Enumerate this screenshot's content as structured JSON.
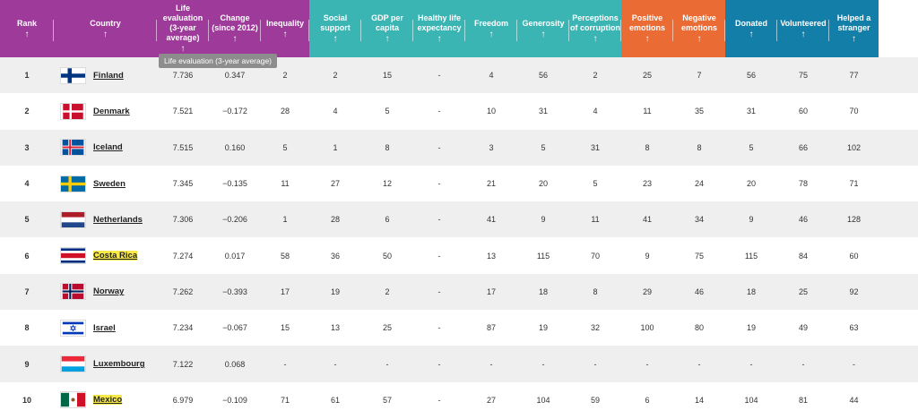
{
  "headers": [
    {
      "key": "rank",
      "label": "Rank",
      "group": "purple",
      "arrow": "↑"
    },
    {
      "key": "country",
      "label": "Country",
      "group": "purple",
      "arrow": "↑"
    },
    {
      "key": "life",
      "label": "Life\nevaluation\n(3-year\naverage)",
      "group": "purple",
      "arrow": "↑"
    },
    {
      "key": "change",
      "label": "Change\n(since 2012)",
      "group": "purple",
      "arrow": "↑"
    },
    {
      "key": "inequality",
      "label": "Inequality",
      "group": "purple",
      "arrow": "↑"
    },
    {
      "key": "social",
      "label": "Social\nsupport",
      "group": "teal",
      "arrow": "↑"
    },
    {
      "key": "gdp",
      "label": "GDP per\ncapita",
      "group": "teal",
      "arrow": "↑"
    },
    {
      "key": "healthy",
      "label": "Healthy life\nexpectancy",
      "group": "teal",
      "arrow": "↑"
    },
    {
      "key": "freedom",
      "label": "Freedom",
      "group": "teal",
      "arrow": "↑"
    },
    {
      "key": "generosity",
      "label": "Generosity",
      "group": "teal",
      "arrow": "↑"
    },
    {
      "key": "corruption",
      "label": "Perceptions\nof corruption",
      "group": "teal",
      "arrow": "↑"
    },
    {
      "key": "positive",
      "label": "Positive\nemotions",
      "group": "orange",
      "arrow": "↑"
    },
    {
      "key": "negative",
      "label": "Negative\nemotions",
      "group": "orange",
      "arrow": "↑"
    },
    {
      "key": "donated",
      "label": "Donated",
      "group": "blue",
      "arrow": "↑"
    },
    {
      "key": "volunteered",
      "label": "Volunteered",
      "group": "blue",
      "arrow": "↑"
    },
    {
      "key": "helped",
      "label": "Helped a\nstranger",
      "group": "blue",
      "arrow": "↑"
    }
  ],
  "tooltip": "Life evaluation (3-year average)",
  "colors": {
    "purple": "#9e3a9a",
    "teal": "#3ab5b3",
    "orange": "#ea6b34",
    "blue": "#137fa8",
    "highlight": "#f7e94a"
  },
  "rows": [
    {
      "rank": "1",
      "country": "Finland",
      "flag": "finland",
      "highlight": false,
      "life": "7.736",
      "change": "0.347",
      "inequality": "2",
      "social": "2",
      "gdp": "15",
      "healthy": "-",
      "freedom": "4",
      "generosity": "56",
      "corruption": "2",
      "positive": "25",
      "negative": "7",
      "donated": "56",
      "volunteered": "75",
      "helped": "77"
    },
    {
      "rank": "2",
      "country": "Denmark",
      "flag": "denmark",
      "highlight": false,
      "life": "7.521",
      "change": "−0.172",
      "inequality": "28",
      "social": "4",
      "gdp": "5",
      "healthy": "-",
      "freedom": "10",
      "generosity": "31",
      "corruption": "4",
      "positive": "11",
      "negative": "35",
      "donated": "31",
      "volunteered": "60",
      "helped": "70"
    },
    {
      "rank": "3",
      "country": "Iceland",
      "flag": "iceland",
      "highlight": false,
      "life": "7.515",
      "change": "0.160",
      "inequality": "5",
      "social": "1",
      "gdp": "8",
      "healthy": "-",
      "freedom": "3",
      "generosity": "5",
      "corruption": "31",
      "positive": "8",
      "negative": "8",
      "donated": "5",
      "volunteered": "66",
      "helped": "102"
    },
    {
      "rank": "4",
      "country": "Sweden",
      "flag": "sweden",
      "highlight": false,
      "life": "7.345",
      "change": "−0.135",
      "inequality": "11",
      "social": "27",
      "gdp": "12",
      "healthy": "-",
      "freedom": "21",
      "generosity": "20",
      "corruption": "5",
      "positive": "23",
      "negative": "24",
      "donated": "20",
      "volunteered": "78",
      "helped": "71"
    },
    {
      "rank": "5",
      "country": "Netherlands",
      "flag": "netherlands",
      "highlight": false,
      "life": "7.306",
      "change": "−0.206",
      "inequality": "1",
      "social": "28",
      "gdp": "6",
      "healthy": "-",
      "freedom": "41",
      "generosity": "9",
      "corruption": "11",
      "positive": "41",
      "negative": "34",
      "donated": "9",
      "volunteered": "46",
      "helped": "128"
    },
    {
      "rank": "6",
      "country": "Costa Rica",
      "flag": "costa-rica",
      "highlight": true,
      "life": "7.274",
      "change": "0.017",
      "inequality": "58",
      "social": "36",
      "gdp": "50",
      "healthy": "-",
      "freedom": "13",
      "generosity": "115",
      "corruption": "70",
      "positive": "9",
      "negative": "75",
      "donated": "115",
      "volunteered": "84",
      "helped": "60"
    },
    {
      "rank": "7",
      "country": "Norway",
      "flag": "norway",
      "highlight": false,
      "life": "7.262",
      "change": "−0.393",
      "inequality": "17",
      "social": "19",
      "gdp": "2",
      "healthy": "-",
      "freedom": "17",
      "generosity": "18",
      "corruption": "8",
      "positive": "29",
      "negative": "46",
      "donated": "18",
      "volunteered": "25",
      "helped": "92"
    },
    {
      "rank": "8",
      "country": "Israel",
      "flag": "israel",
      "highlight": false,
      "life": "7.234",
      "change": "−0.067",
      "inequality": "15",
      "social": "13",
      "gdp": "25",
      "healthy": "-",
      "freedom": "87",
      "generosity": "19",
      "corruption": "32",
      "positive": "100",
      "negative": "80",
      "donated": "19",
      "volunteered": "49",
      "helped": "63"
    },
    {
      "rank": "9",
      "country": "Luxembourg",
      "flag": "luxembourg",
      "highlight": false,
      "life": "7.122",
      "change": "0.068",
      "inequality": "-",
      "social": "-",
      "gdp": "-",
      "healthy": "-",
      "freedom": "-",
      "generosity": "-",
      "corruption": "-",
      "positive": "-",
      "negative": "-",
      "donated": "-",
      "volunteered": "-",
      "helped": "-"
    },
    {
      "rank": "10",
      "country": "Mexico",
      "flag": "mexico",
      "highlight": true,
      "life": "6.979",
      "change": "−0.109",
      "inequality": "71",
      "social": "61",
      "gdp": "57",
      "healthy": "-",
      "freedom": "27",
      "generosity": "104",
      "corruption": "59",
      "positive": "6",
      "negative": "14",
      "donated": "104",
      "volunteered": "81",
      "helped": "44"
    }
  ]
}
